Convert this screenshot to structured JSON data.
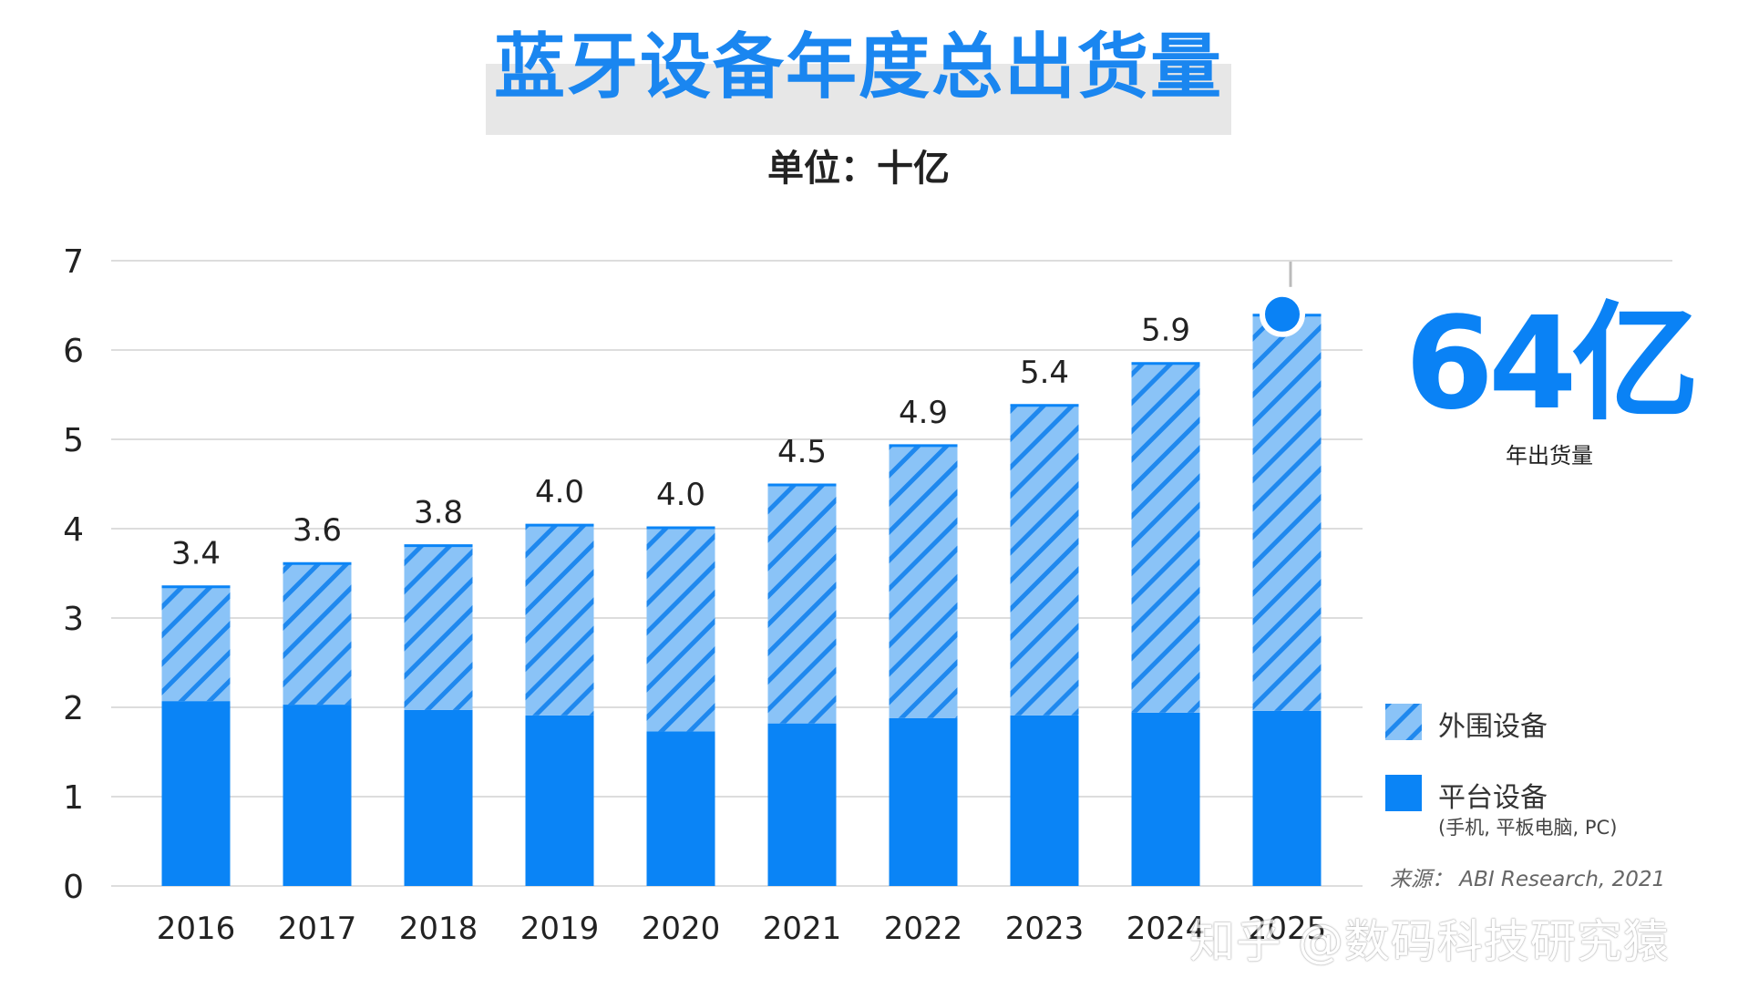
{
  "page": {
    "title": "蓝牙设备年度总出货量",
    "subtitle": "单位：十亿",
    "highlight_value": "64亿",
    "highlight_caption": "年出货量",
    "source": "来源：  ABI Research, 2021",
    "watermark": "知乎 @数码科技研究猿"
  },
  "legend": {
    "peripheral": "外围设备",
    "platform": "平台设备",
    "platform_note": "(手机, 平板电脑, PC)"
  },
  "colors": {
    "title": "#1a86f0",
    "platform": "#0a84f6",
    "peripheral_fill": "#8ac3f7",
    "peripheral_hatch": "#1f88ee",
    "highlight": "#0a82f5",
    "grid": "#dddddd"
  },
  "chart_data": {
    "type": "bar",
    "stacked": true,
    "categories": [
      "2016",
      "2017",
      "2018",
      "2019",
      "2020",
      "2021",
      "2022",
      "2023",
      "2024",
      "2025"
    ],
    "series": [
      {
        "name": "平台设备",
        "values": [
          2.07,
          2.03,
          1.97,
          1.91,
          1.73,
          1.82,
          1.88,
          1.91,
          1.94,
          1.96
        ]
      },
      {
        "name": "外围设备",
        "values": [
          1.29,
          1.59,
          1.85,
          2.14,
          2.29,
          2.68,
          3.06,
          3.48,
          3.92,
          4.44
        ]
      }
    ],
    "totals": [
      "3.4",
      "3.6",
      "3.8",
      "4.0",
      "4.0",
      "4.5",
      "4.9",
      "5.4",
      "5.9",
      ""
    ],
    "y_ticks": [
      "0",
      "1",
      "2",
      "3",
      "4",
      "5",
      "6",
      "7"
    ],
    "ylim": [
      0,
      7
    ],
    "grid": true,
    "legend_position": "right",
    "highlight_category": "2025"
  }
}
